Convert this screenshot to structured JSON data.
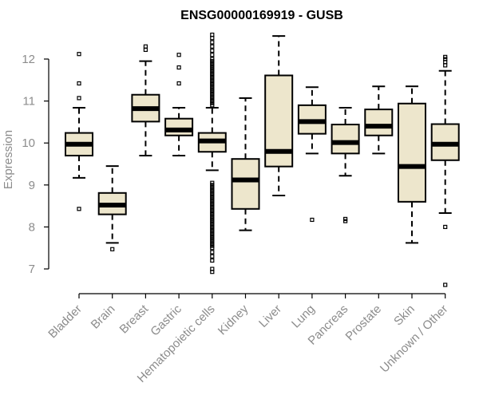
{
  "chart_data": {
    "type": "boxplot",
    "title": "ENSG00000169919 - GUSB",
    "xlabel": "",
    "ylabel": "Expression",
    "ylim": [
      6.35,
      12.8
    ],
    "yticks": [
      7,
      8,
      9,
      10,
      11,
      12
    ],
    "box_color": "#ede6cc",
    "categories": [
      "Bladder",
      "Brain",
      "Breast",
      "Gastric",
      "Hematopoietic cells",
      "Kidney",
      "Liver",
      "Lung",
      "Pancreas",
      "Prostate",
      "Skin",
      "Unknown / Other"
    ],
    "boxes": [
      {
        "name": "Bladder",
        "min": 9.17,
        "q1": 9.7,
        "median": 9.97,
        "q3": 10.24,
        "max": 10.84,
        "outliers": [
          12.12,
          11.42,
          11.07,
          8.43
        ]
      },
      {
        "name": "Brain",
        "min": 7.62,
        "q1": 8.3,
        "median": 8.52,
        "q3": 8.81,
        "max": 9.45,
        "outliers": [
          7.47
        ]
      },
      {
        "name": "Breast",
        "min": 9.7,
        "q1": 10.51,
        "median": 10.82,
        "q3": 11.15,
        "max": 11.95,
        "outliers": [
          12.3,
          12.22
        ]
      },
      {
        "name": "Gastric",
        "min": 9.7,
        "q1": 10.18,
        "median": 10.31,
        "q3": 10.58,
        "max": 10.84,
        "outliers": [
          12.1,
          11.8,
          11.42
        ]
      },
      {
        "name": "Hematopoietic cells",
        "min": 9.35,
        "q1": 9.79,
        "median": 10.05,
        "q3": 10.24,
        "max": 10.84,
        "outliers": [
          12.58,
          12.5,
          12.4,
          12.3,
          12.2,
          12.1,
          12.0,
          11.95,
          11.9,
          11.85,
          11.8,
          11.75,
          11.7,
          11.65,
          11.6,
          11.55,
          11.5,
          11.45,
          11.4,
          11.35,
          11.3,
          11.25,
          11.2,
          11.15,
          11.1,
          11.05,
          11.0,
          10.95,
          10.9,
          9.05,
          9.0,
          8.95,
          8.9,
          8.85,
          8.8,
          8.75,
          8.7,
          8.65,
          8.6,
          8.55,
          8.5,
          8.45,
          8.4,
          8.35,
          8.3,
          8.25,
          8.2,
          8.15,
          8.1,
          8.05,
          8.0,
          7.95,
          7.9,
          7.85,
          7.8,
          7.75,
          7.7,
          7.65,
          7.6,
          7.55,
          7.5,
          7.4,
          7.3,
          7.2,
          7.0,
          6.93
        ]
      },
      {
        "name": "Kidney",
        "min": 7.92,
        "q1": 8.43,
        "median": 9.12,
        "q3": 9.62,
        "max": 11.07,
        "outliers": []
      },
      {
        "name": "Liver",
        "min": 8.75,
        "q1": 9.44,
        "median": 9.8,
        "q3": 11.61,
        "max": 12.55,
        "outliers": []
      },
      {
        "name": "Lung",
        "min": 9.75,
        "q1": 10.22,
        "median": 10.51,
        "q3": 10.9,
        "max": 11.33,
        "outliers": [
          8.17
        ]
      },
      {
        "name": "Pancreas",
        "min": 9.22,
        "q1": 9.75,
        "median": 10.01,
        "q3": 10.44,
        "max": 10.84,
        "outliers": [
          8.19,
          8.14
        ]
      },
      {
        "name": "Prostate",
        "min": 9.75,
        "q1": 10.18,
        "median": 10.4,
        "q3": 10.8,
        "max": 11.35,
        "outliers": []
      },
      {
        "name": "Skin",
        "min": 7.62,
        "q1": 8.6,
        "median": 9.44,
        "q3": 10.94,
        "max": 11.35,
        "outliers": []
      },
      {
        "name": "Unknown / Other",
        "min": 8.33,
        "q1": 9.59,
        "median": 9.97,
        "q3": 10.45,
        "max": 11.72,
        "outliers": [
          12.05,
          12.0,
          11.93,
          11.85,
          8.0,
          6.62
        ]
      }
    ]
  }
}
